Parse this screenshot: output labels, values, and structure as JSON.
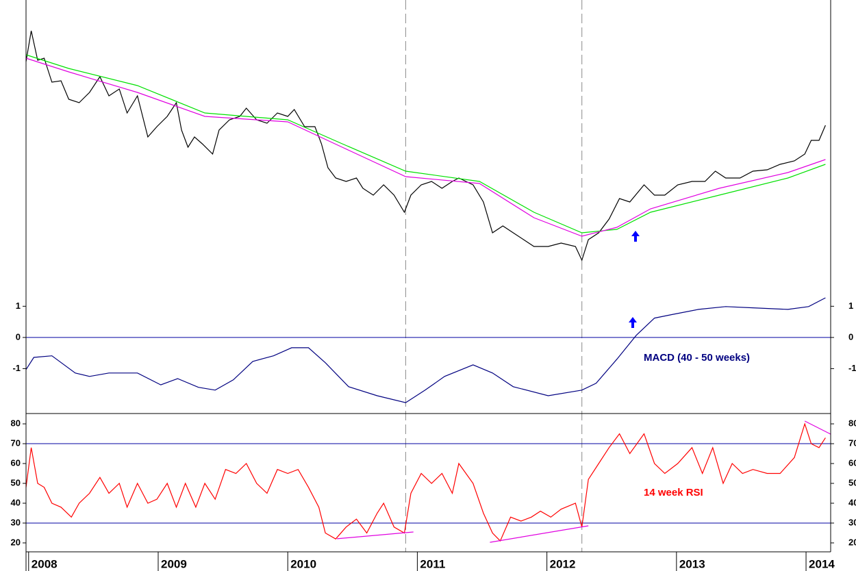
{
  "chart_data": [
    {
      "type": "line",
      "xlim": [
        2007.98,
        2014.19
      ],
      "ylim": [
        0,
        425
      ],
      "vlines": [
        2010.91,
        2012.27
      ],
      "series": [
        {
          "color": "#000000",
          "x": [
            2007.98,
            2008.02,
            2008.07,
            2008.12,
            2008.18,
            2008.25,
            2008.31,
            2008.39,
            2008.47,
            2008.55,
            2008.62,
            2008.7,
            2008.76,
            2008.84,
            2008.92,
            2008.99,
            2009.07,
            2009.14,
            2009.18,
            2009.23,
            2009.28,
            2009.34,
            2009.42,
            2009.47,
            2009.55,
            2009.63,
            2009.68,
            2009.76,
            2009.84,
            2009.92,
            2010.0,
            2010.05,
            2010.13,
            2010.21,
            2010.26,
            2010.31,
            2010.37,
            2010.45,
            2010.53,
            2010.58,
            2010.66,
            2010.74,
            2010.82,
            2010.9,
            2010.95,
            2011.03,
            2011.11,
            2011.19,
            2011.27,
            2011.32,
            2011.43,
            2011.51,
            2011.58,
            2011.66,
            2011.74,
            2011.82,
            2011.9,
            2012.01,
            2012.11,
            2012.22,
            2012.27,
            2012.32,
            2012.4,
            2012.48,
            2012.56,
            2012.64,
            2012.75,
            2012.83,
            2012.91,
            2013.01,
            2013.12,
            2013.22,
            2013.3,
            2013.38,
            2013.49,
            2013.59,
            2013.7,
            2013.8,
            2013.91,
            2013.99,
            2014.04,
            2014.1,
            2014.15
          ],
          "values": [
            335,
            380,
            337,
            340,
            305,
            307,
            280,
            275,
            290,
            313,
            285,
            295,
            260,
            285,
            225,
            240,
            255,
            275,
            235,
            210,
            225,
            215,
            200,
            235,
            250,
            255,
            267,
            250,
            245,
            260,
            255,
            265,
            240,
            240,
            215,
            180,
            165,
            160,
            165,
            150,
            140,
            155,
            140,
            115,
            140,
            155,
            160,
            150,
            160,
            165,
            155,
            130,
            85,
            95,
            85,
            75,
            65,
            65,
            70,
            65,
            45,
            75,
            85,
            105,
            135,
            130,
            155,
            140,
            140,
            155,
            160,
            160,
            175,
            165,
            165,
            175,
            177,
            185,
            190,
            200,
            220,
            220,
            242
          ]
        },
        {
          "color": "#00e000",
          "x": [
            2007.98,
            2008.31,
            2008.84,
            2009.36,
            2010.0,
            2010.42,
            2010.91,
            2011.48,
            2011.9,
            2012.27,
            2012.54,
            2012.8,
            2013.33,
            2013.86,
            2014.15
          ],
          "values": [
            345,
            325,
            300,
            260,
            250,
            215,
            175,
            160,
            115,
            85,
            90,
            115,
            140,
            165,
            185
          ]
        },
        {
          "color": "#e000e0",
          "x": [
            2007.98,
            2008.31,
            2008.84,
            2009.36,
            2010.0,
            2010.42,
            2010.91,
            2011.48,
            2011.9,
            2012.27,
            2012.54,
            2012.8,
            2013.33,
            2013.86,
            2014.15
          ],
          "values": [
            340,
            320,
            290,
            255,
            247,
            210,
            167,
            157,
            107,
            80,
            93,
            120,
            150,
            173,
            192
          ]
        }
      ]
    },
    {
      "type": "line",
      "xlim": [
        2007.98,
        2014.19
      ],
      "ylim": [
        -2.44,
        1.49
      ],
      "yticks": [
        -1,
        0,
        1
      ],
      "hlines": [
        0
      ],
      "annotation": "MACD (40 - 50 weeks)",
      "annotation_color": "#000080",
      "series": [
        {
          "color": "#000080",
          "x": [
            2007.98,
            2008.04,
            2008.18,
            2008.36,
            2008.47,
            2008.62,
            2008.84,
            2009.02,
            2009.15,
            2009.31,
            2009.44,
            2009.58,
            2009.73,
            2009.89,
            2010.03,
            2010.16,
            2010.29,
            2010.47,
            2010.69,
            2010.91,
            2011.06,
            2011.21,
            2011.43,
            2011.58,
            2011.74,
            2012.01,
            2012.27,
            2012.38,
            2012.54,
            2012.69,
            2012.83,
            2012.96,
            2013.17,
            2013.38,
            2013.59,
            2013.86,
            2014.02,
            2014.15
          ],
          "values": [
            -1.03,
            -0.64,
            -0.59,
            -1.14,
            -1.25,
            -1.14,
            -1.14,
            -1.52,
            -1.32,
            -1.6,
            -1.69,
            -1.36,
            -0.77,
            -0.59,
            -0.33,
            -0.33,
            -0.81,
            -1.58,
            -1.87,
            -2.09,
            -1.69,
            -1.25,
            -0.88,
            -1.14,
            -1.58,
            -1.87,
            -1.69,
            -1.47,
            -0.7,
            0.07,
            0.62,
            0.73,
            0.9,
            0.99,
            0.95,
            0.9,
            0.99,
            1.27
          ]
        }
      ]
    },
    {
      "type": "line",
      "xlim": [
        2007.98,
        2014.19
      ],
      "ylim": [
        15.5,
        85.2
      ],
      "yticks": [
        20,
        30,
        40,
        50,
        60,
        70,
        80
      ],
      "hlines": [
        30,
        70
      ],
      "xticks": [
        2008,
        2009,
        2010,
        2011,
        2012,
        2013,
        2014
      ],
      "annotation": "14 week RSI",
      "annotation_color": "#ff0000",
      "series": [
        {
          "color": "#ff0000",
          "x": [
            2007.98,
            2008.02,
            2008.07,
            2008.12,
            2008.18,
            2008.25,
            2008.33,
            2008.39,
            2008.47,
            2008.55,
            2008.62,
            2008.7,
            2008.76,
            2008.84,
            2008.92,
            2008.99,
            2009.07,
            2009.14,
            2009.21,
            2009.29,
            2009.36,
            2009.44,
            2009.52,
            2009.6,
            2009.68,
            2009.76,
            2009.84,
            2009.92,
            2010.0,
            2010.08,
            2010.16,
            2010.24,
            2010.29,
            2010.37,
            2010.45,
            2010.53,
            2010.61,
            2010.69,
            2010.74,
            2010.82,
            2010.9,
            2010.95,
            2011.03,
            2011.11,
            2011.19,
            2011.27,
            2011.32,
            2011.43,
            2011.51,
            2011.58,
            2011.64,
            2011.72,
            2011.8,
            2011.88,
            2011.95,
            2012.03,
            2012.11,
            2012.22,
            2012.27,
            2012.32,
            2012.4,
            2012.48,
            2012.56,
            2012.64,
            2012.75,
            2012.83,
            2012.91,
            2013.01,
            2013.12,
            2013.2,
            2013.28,
            2013.36,
            2013.43,
            2013.51,
            2013.59,
            2013.7,
            2013.8,
            2013.91,
            2013.99,
            2014.04,
            2014.1,
            2014.15
          ],
          "values": [
            48,
            68,
            50,
            48,
            40,
            38,
            33,
            40,
            45,
            53,
            45,
            50,
            38,
            50,
            40,
            42,
            50,
            38,
            50,
            38,
            50,
            42,
            57,
            55,
            60,
            50,
            45,
            57,
            55,
            57,
            48,
            38,
            25,
            22,
            28,
            32,
            25,
            35,
            40,
            28,
            25,
            45,
            55,
            50,
            55,
            45,
            60,
            50,
            35,
            25,
            21,
            33,
            31,
            33,
            36,
            33,
            37,
            40,
            28,
            52,
            60,
            68,
            75,
            65,
            75,
            60,
            55,
            60,
            68,
            55,
            68,
            50,
            60,
            55,
            57,
            55,
            55,
            63,
            80,
            70,
            68,
            73
          ]
        }
      ],
      "trendlines": [
        {
          "color": "#e000e0",
          "x": [
            2010.38,
            2010.97
          ],
          "values": [
            22.1,
            25.5
          ]
        },
        {
          "color": "#e000e0",
          "x": [
            2011.56,
            2012.32
          ],
          "values": [
            20.3,
            28.6
          ]
        },
        {
          "color": "#e000e0",
          "x": [
            2013.99,
            2014.19
          ],
          "values": [
            81.4,
            74.8
          ]
        }
      ]
    }
  ]
}
